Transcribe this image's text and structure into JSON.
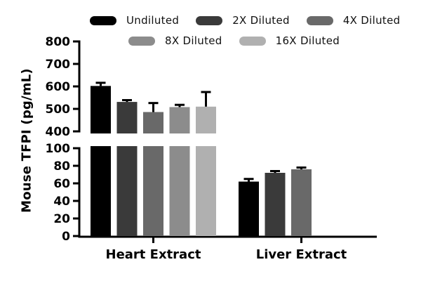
{
  "legend": {
    "items": [
      {
        "label": "Undiluted",
        "color": "#000000"
      },
      {
        "label": "2X Diluted",
        "color": "#3a3a3a"
      },
      {
        "label": "4X Diluted",
        "color": "#696969"
      },
      {
        "label": "8X Diluted",
        "color": "#8c8c8c"
      },
      {
        "label": "16X Diluted",
        "color": "#b0b0b0"
      }
    ]
  },
  "chart_data": {
    "type": "bar",
    "title": "",
    "xlabel": "",
    "ylabel": "Mouse TFPI (pg/mL)",
    "categories": [
      "Heart Extract",
      "Liver Extract"
    ],
    "series": [
      {
        "name": "Undiluted",
        "color": "#000000",
        "values": [
          602,
          62
        ],
        "errors_plus": [
          14,
          3
        ]
      },
      {
        "name": "2X Diluted",
        "color": "#3a3a3a",
        "values": [
          531,
          72
        ],
        "errors_plus": [
          8,
          2
        ]
      },
      {
        "name": "4X Diluted",
        "color": "#696969",
        "values": [
          486,
          76
        ],
        "errors_plus": [
          40,
          2
        ]
      },
      {
        "name": "8X Diluted",
        "color": "#8c8c8c",
        "values": [
          508,
          null
        ],
        "errors_plus": [
          10,
          null
        ]
      },
      {
        "name": "16X Diluted",
        "color": "#b0b0b0",
        "values": [
          510,
          null
        ],
        "errors_plus": [
          65,
          null
        ]
      }
    ],
    "axis_break": {
      "upper_range": [
        400,
        800
      ],
      "lower_range": [
        0,
        100
      ]
    },
    "upper_ticks": [
      400,
      500,
      600,
      700,
      800
    ],
    "lower_ticks": [
      0,
      20,
      40,
      60,
      80,
      100
    ],
    "grid": false,
    "legend_position": "top",
    "error_bar_color": "#000000"
  }
}
